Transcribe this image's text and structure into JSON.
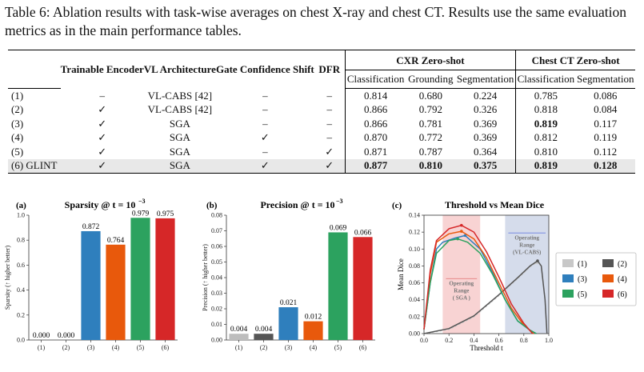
{
  "caption": "Table 6: Ablation results with task-wise averages on chest X-ray and chest CT. Results use the same evaluation metrics as in the main performance tables.",
  "table": {
    "headers": {
      "trainable_encoder": "Trainable Encoder",
      "vl_architecture": "VL Architecture",
      "gate_confidence_shift": "Gate Confidence Shift",
      "dfr": "DFR",
      "cxr_group": "CXR Zero-shot",
      "ct_group": "Chest CT Zero-shot",
      "sub": [
        "Classification",
        "Grounding",
        "Segmentation",
        "Classification",
        "Segmentation"
      ]
    },
    "rows": [
      {
        "label": "(1)",
        "enc": "–",
        "arch": "VL-CABS [42]",
        "gate": "–",
        "dfr": "–",
        "vals": [
          "0.814",
          "0.680",
          "0.224",
          "0.785",
          "0.086"
        ]
      },
      {
        "label": "(2)",
        "enc": "✓",
        "arch": "VL-CABS [42]",
        "gate": "–",
        "dfr": "–",
        "vals": [
          "0.866",
          "0.792",
          "0.326",
          "0.818",
          "0.084"
        ]
      },
      {
        "label": "(3)",
        "enc": "✓",
        "arch": "SGA",
        "gate": "–",
        "dfr": "–",
        "vals": [
          "0.866",
          "0.781",
          "0.369",
          "0.819",
          "0.117"
        ]
      },
      {
        "label": "(4)",
        "enc": "✓",
        "arch": "SGA",
        "gate": "✓",
        "dfr": "–",
        "vals": [
          "0.870",
          "0.772",
          "0.369",
          "0.812",
          "0.119"
        ]
      },
      {
        "label": "(5)",
        "enc": "✓",
        "arch": "SGA",
        "gate": "–",
        "dfr": "✓",
        "vals": [
          "0.871",
          "0.787",
          "0.364",
          "0.810",
          "0.112"
        ]
      },
      {
        "label": "(6) GLINT",
        "enc": "✓",
        "arch": "SGA",
        "gate": "✓",
        "dfr": "✓",
        "vals": [
          "0.877",
          "0.810",
          "0.375",
          "0.819",
          "0.128"
        ]
      }
    ]
  },
  "chart_data": [
    {
      "type": "bar",
      "panel": "(a)",
      "title": "Sparsity @ t = 10^-3",
      "title_main": "Sparsity @ t = 10",
      "title_exp": "−3",
      "ylabel": "Sparsity (↑ higher better)",
      "categories": [
        "(1)",
        "(2)",
        "(3)",
        "(4)",
        "(5)",
        "(6)"
      ],
      "values": [
        0.0,
        0.0,
        0.872,
        0.764,
        0.979,
        0.975
      ],
      "labels": [
        "0.000",
        "0.000",
        "0.872",
        "0.764",
        "0.979",
        "0.975"
      ],
      "colors": [
        "#bdbdbd",
        "#555555",
        "#2f7fbd",
        "#e8590c",
        "#2ca25f",
        "#d62728"
      ],
      "ylim": [
        0,
        1.0
      ],
      "yticks": [
        "0.0",
        "0.2",
        "0.4",
        "0.6",
        "0.8",
        "1.0"
      ]
    },
    {
      "type": "bar",
      "panel": "(b)",
      "title": "Precision @ t = 10^-3",
      "title_main": "Precision @ t = 10",
      "title_exp": "−3",
      "ylabel": "Precision (↑ higher better)",
      "categories": [
        "(1)",
        "(2)",
        "(3)",
        "(4)",
        "(5)",
        "(6)"
      ],
      "values": [
        0.004,
        0.004,
        0.021,
        0.012,
        0.069,
        0.066
      ],
      "labels": [
        "0.004",
        "0.004",
        "0.021",
        "0.012",
        "0.069",
        "0.066"
      ],
      "colors": [
        "#bdbdbd",
        "#555555",
        "#2f7fbd",
        "#e8590c",
        "#2ca25f",
        "#d62728"
      ],
      "ylim": [
        0,
        0.08
      ],
      "yticks": [
        "0.00",
        "0.01",
        "0.02",
        "0.03",
        "0.04",
        "0.05",
        "0.06",
        "0.07",
        "0.08"
      ]
    },
    {
      "type": "line",
      "panel": "(c)",
      "title": "Threshold vs Mean Dice",
      "xlabel": "Threshold t",
      "ylabel": "Mean Dice",
      "xlim": [
        0,
        1
      ],
      "ylim": [
        0,
        0.14
      ],
      "xticks": [
        "0.0",
        "0.2",
        "0.4",
        "0.6",
        "0.8",
        "1.0"
      ],
      "yticks": [
        "0.00",
        "0.02",
        "0.04",
        "0.06",
        "0.08",
        "0.10",
        "0.12",
        "0.14"
      ],
      "regions": [
        {
          "name": "Operating Range (SGA)",
          "x": [
            0.15,
            0.45
          ],
          "color": "#f4b6b6",
          "label_lines": [
            "Operating",
            "Range",
            "( SGA )"
          ]
        },
        {
          "name": "Operating Range (VL-CABS)",
          "x": [
            0.65,
            1.0
          ],
          "color": "#b9c4dd",
          "label_lines": [
            "Operating",
            "Range",
            "(VL-CABS)"
          ]
        }
      ],
      "series": [
        {
          "name": "(1)",
          "color": "#c8c8c8",
          "dash": true,
          "points": [
            [
              0,
              0
            ],
            [
              0.2,
              0.005
            ],
            [
              0.4,
              0.02
            ],
            [
              0.6,
              0.045
            ],
            [
              0.75,
              0.065
            ],
            [
              0.85,
              0.079
            ],
            [
              0.9,
              0.084
            ],
            [
              0.94,
              0.08
            ],
            [
              0.97,
              0.04
            ],
            [
              0.985,
              0.0
            ]
          ]
        },
        {
          "name": "(2)",
          "color": "#555555",
          "dash": false,
          "points": [
            [
              0,
              0
            ],
            [
              0.2,
              0.006
            ],
            [
              0.4,
              0.021
            ],
            [
              0.6,
              0.046
            ],
            [
              0.75,
              0.066
            ],
            [
              0.85,
              0.08
            ],
            [
              0.91,
              0.086
            ],
            [
              0.94,
              0.08
            ],
            [
              0.97,
              0.04
            ],
            [
              0.985,
              0.0
            ]
          ]
        },
        {
          "name": "(3)",
          "color": "#2f7fbd",
          "dash": false,
          "points": [
            [
              0,
              0.005
            ],
            [
              0.05,
              0.06
            ],
            [
              0.1,
              0.1
            ],
            [
              0.15,
              0.108
            ],
            [
              0.25,
              0.113
            ],
            [
              0.33,
              0.116
            ],
            [
              0.45,
              0.1
            ],
            [
              0.55,
              0.072
            ],
            [
              0.65,
              0.04
            ],
            [
              0.75,
              0.015
            ],
            [
              0.85,
              0.004
            ],
            [
              0.9,
              0.0
            ]
          ]
        },
        {
          "name": "(4)",
          "color": "#e8590c",
          "dash": false,
          "points": [
            [
              0,
              0.005
            ],
            [
              0.05,
              0.07
            ],
            [
              0.1,
              0.108
            ],
            [
              0.2,
              0.118
            ],
            [
              0.3,
              0.121
            ],
            [
              0.4,
              0.112
            ],
            [
              0.5,
              0.09
            ],
            [
              0.6,
              0.06
            ],
            [
              0.7,
              0.03
            ],
            [
              0.8,
              0.01
            ],
            [
              0.88,
              0.0
            ]
          ]
        },
        {
          "name": "(5)",
          "color": "#2ca25f",
          "dash": false,
          "points": [
            [
              0,
              0.005
            ],
            [
              0.05,
              0.06
            ],
            [
              0.1,
              0.095
            ],
            [
              0.2,
              0.11
            ],
            [
              0.27,
              0.112
            ],
            [
              0.35,
              0.108
            ],
            [
              0.45,
              0.095
            ],
            [
              0.55,
              0.07
            ],
            [
              0.65,
              0.04
            ],
            [
              0.75,
              0.015
            ],
            [
              0.85,
              0.004
            ],
            [
              0.9,
              0.0
            ]
          ]
        },
        {
          "name": "(6)",
          "color": "#d62728",
          "dash": false,
          "points": [
            [
              0,
              0.005
            ],
            [
              0.05,
              0.075
            ],
            [
              0.1,
              0.11
            ],
            [
              0.2,
              0.124
            ],
            [
              0.3,
              0.128
            ],
            [
              0.4,
              0.12
            ],
            [
              0.5,
              0.097
            ],
            [
              0.6,
              0.067
            ],
            [
              0.7,
              0.035
            ],
            [
              0.8,
              0.012
            ],
            [
              0.87,
              0.0
            ]
          ]
        }
      ],
      "legend": {
        "placement": "right",
        "entries": [
          "(1)",
          "(2)",
          "(3)",
          "(4)",
          "(5)",
          "(6)"
        ]
      }
    }
  ]
}
